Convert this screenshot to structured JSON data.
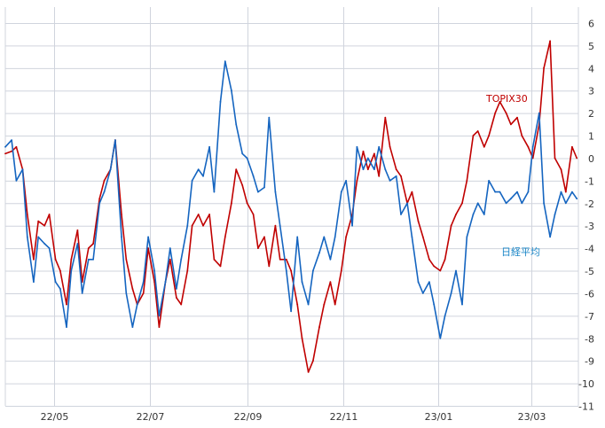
{
  "chart_data": {
    "type": "line",
    "title": "",
    "xlabel": "",
    "ylabel": "",
    "ylim": [
      -11,
      6
    ],
    "y_ticks": [
      "6",
      "5",
      "4",
      "3",
      "2",
      "1",
      "0",
      "-1",
      "-2",
      "-3",
      "-4",
      "-5",
      "-6",
      "-7",
      "-8",
      "-9",
      "-10",
      "-11"
    ],
    "x_ticks": [
      "22/05",
      "22/07",
      "22/09",
      "22/11",
      "23/01",
      "23/03"
    ],
    "x_tick_dates": [
      "2022-05-01",
      "2022-07-01",
      "2022-09-01",
      "2022-11-01",
      "2023-01-01",
      "2023-03-01"
    ],
    "x_range": [
      "2022-03-31",
      "2023-03-31"
    ],
    "grid": true,
    "colors": {
      "grid": "#d0d4dd",
      "axis_text": "#333333"
    },
    "series": [
      {
        "name": "TOPIX30",
        "color": "#c00000",
        "label_color": "#c00000",
        "x": [
          "2022-03-31",
          "2022-04-04",
          "2022-04-07",
          "2022-04-11",
          "2022-04-14",
          "2022-04-18",
          "2022-04-21",
          "2022-04-25",
          "2022-04-28",
          "2022-05-02",
          "2022-05-05",
          "2022-05-09",
          "2022-05-12",
          "2022-05-16",
          "2022-05-19",
          "2022-05-23",
          "2022-05-26",
          "2022-05-30",
          "2022-06-02",
          "2022-06-06",
          "2022-06-09",
          "2022-06-13",
          "2022-06-16",
          "2022-06-20",
          "2022-06-23",
          "2022-06-27",
          "2022-06-30",
          "2022-07-04",
          "2022-07-07",
          "2022-07-11",
          "2022-07-14",
          "2022-07-18",
          "2022-07-21",
          "2022-07-25",
          "2022-07-28",
          "2022-08-01",
          "2022-08-04",
          "2022-08-08",
          "2022-08-11",
          "2022-08-15",
          "2022-08-18",
          "2022-08-22",
          "2022-08-25",
          "2022-08-29",
          "2022-09-01",
          "2022-09-05",
          "2022-09-08",
          "2022-09-12",
          "2022-09-15",
          "2022-09-19",
          "2022-09-22",
          "2022-09-26",
          "2022-09-29",
          "2022-10-03",
          "2022-10-06",
          "2022-10-10",
          "2022-10-13",
          "2022-10-17",
          "2022-10-20",
          "2022-10-24",
          "2022-10-27",
          "2022-10-31",
          "2022-11-03",
          "2022-11-07",
          "2022-11-10",
          "2022-11-14",
          "2022-11-17",
          "2022-11-21",
          "2022-11-24",
          "2022-11-28",
          "2022-12-01",
          "2022-12-05",
          "2022-12-08",
          "2022-12-12",
          "2022-12-15",
          "2022-12-19",
          "2022-12-22",
          "2022-12-26",
          "2022-12-29",
          "2023-01-02",
          "2023-01-05",
          "2023-01-09",
          "2023-01-12",
          "2023-01-16",
          "2023-01-19",
          "2023-01-23",
          "2023-01-26",
          "2023-01-30",
          "2023-02-02",
          "2023-02-06",
          "2023-02-09",
          "2023-02-13",
          "2023-02-16",
          "2023-02-20",
          "2023-02-23",
          "2023-02-27",
          "2023-03-02",
          "2023-03-06",
          "2023-03-09",
          "2023-03-13",
          "2023-03-16",
          "2023-03-20",
          "2023-03-23",
          "2023-03-27",
          "2023-03-30"
        ],
        "values": [
          0.2,
          0.3,
          0.5,
          -0.5,
          -2.5,
          -4.5,
          -2.8,
          -3.0,
          -2.5,
          -4.5,
          -5.0,
          -6.5,
          -4.5,
          -3.2,
          -5.5,
          -4.0,
          -3.8,
          -1.8,
          -1.0,
          -0.5,
          0.8,
          -2.5,
          -4.5,
          -5.8,
          -6.5,
          -6.0,
          -4.0,
          -5.5,
          -7.5,
          -5.5,
          -4.5,
          -6.2,
          -6.5,
          -5.0,
          -3.0,
          -2.5,
          -3.0,
          -2.5,
          -4.5,
          -4.8,
          -3.5,
          -2.0,
          -0.5,
          -1.2,
          -2.0,
          -2.5,
          -4.0,
          -3.5,
          -4.8,
          -3.0,
          -4.5,
          -4.5,
          -5.0,
          -6.5,
          -8.0,
          -9.5,
          -9.0,
          -7.5,
          -6.5,
          -5.5,
          -6.5,
          -5.0,
          -3.5,
          -2.5,
          -1.0,
          0.3,
          -0.5,
          0.2,
          -0.8,
          1.8,
          0.5,
          -0.5,
          -0.8,
          -2.0,
          -1.5,
          -2.8,
          -3.5,
          -4.5,
          -4.8,
          -5.0,
          -4.5,
          -3.0,
          -2.5,
          -2.0,
          -1.0,
          1.0,
          1.2,
          0.5,
          1.0,
          2.0,
          2.5,
          2.0,
          1.5,
          1.8,
          1.0,
          0.5,
          0.0,
          1.5,
          4.0,
          5.2,
          0.0,
          -0.5,
          -1.5,
          0.5,
          0.0
        ]
      },
      {
        "name": "日経平均",
        "color": "#1565c0",
        "label_color": "#1e88c8",
        "x": [
          "2022-03-31",
          "2022-04-04",
          "2022-04-07",
          "2022-04-11",
          "2022-04-14",
          "2022-04-18",
          "2022-04-21",
          "2022-04-25",
          "2022-04-28",
          "2022-05-02",
          "2022-05-05",
          "2022-05-09",
          "2022-05-12",
          "2022-05-16",
          "2022-05-19",
          "2022-05-23",
          "2022-05-26",
          "2022-05-30",
          "2022-06-02",
          "2022-06-06",
          "2022-06-09",
          "2022-06-13",
          "2022-06-16",
          "2022-06-20",
          "2022-06-23",
          "2022-06-27",
          "2022-06-30",
          "2022-07-04",
          "2022-07-07",
          "2022-07-11",
          "2022-07-14",
          "2022-07-18",
          "2022-07-21",
          "2022-07-25",
          "2022-07-28",
          "2022-08-01",
          "2022-08-04",
          "2022-08-08",
          "2022-08-11",
          "2022-08-15",
          "2022-08-18",
          "2022-08-22",
          "2022-08-25",
          "2022-08-29",
          "2022-09-01",
          "2022-09-05",
          "2022-09-08",
          "2022-09-12",
          "2022-09-15",
          "2022-09-19",
          "2022-09-22",
          "2022-09-26",
          "2022-09-29",
          "2022-10-03",
          "2022-10-06",
          "2022-10-10",
          "2022-10-13",
          "2022-10-17",
          "2022-10-20",
          "2022-10-24",
          "2022-10-27",
          "2022-10-31",
          "2022-11-03",
          "2022-11-07",
          "2022-11-10",
          "2022-11-14",
          "2022-11-17",
          "2022-11-21",
          "2022-11-24",
          "2022-11-28",
          "2022-12-01",
          "2022-12-05",
          "2022-12-08",
          "2022-12-12",
          "2022-12-15",
          "2022-12-19",
          "2022-12-22",
          "2022-12-26",
          "2022-12-29",
          "2023-01-02",
          "2023-01-05",
          "2023-01-09",
          "2023-01-12",
          "2023-01-16",
          "2023-01-19",
          "2023-01-23",
          "2023-01-26",
          "2023-01-30",
          "2023-02-02",
          "2023-02-06",
          "2023-02-09",
          "2023-02-13",
          "2023-02-16",
          "2023-02-20",
          "2023-02-23",
          "2023-02-27",
          "2023-03-02",
          "2023-03-06",
          "2023-03-09",
          "2023-03-13",
          "2023-03-16",
          "2023-03-20",
          "2023-03-23",
          "2023-03-27",
          "2023-03-30"
        ],
        "values": [
          0.5,
          0.8,
          -1.0,
          -0.5,
          -3.5,
          -5.5,
          -3.5,
          -3.8,
          -4.0,
          -5.5,
          -5.8,
          -7.5,
          -5.0,
          -3.8,
          -6.0,
          -4.5,
          -4.5,
          -2.0,
          -1.5,
          -0.5,
          0.8,
          -3.5,
          -6.0,
          -7.5,
          -6.5,
          -5.5,
          -3.5,
          -5.0,
          -7.0,
          -5.5,
          -4.0,
          -5.8,
          -4.5,
          -3.0,
          -1.0,
          -0.5,
          -0.8,
          0.5,
          -1.5,
          2.5,
          4.3,
          3.0,
          1.5,
          0.2,
          0.0,
          -0.8,
          -1.5,
          -1.3,
          1.8,
          -1.5,
          -3.0,
          -5.0,
          -6.8,
          -3.5,
          -5.5,
          -6.5,
          -5.0,
          -4.2,
          -3.5,
          -4.5,
          -3.5,
          -1.5,
          -1.0,
          -3.0,
          0.5,
          -0.5,
          0.0,
          -0.5,
          0.5,
          -0.5,
          -1.0,
          -0.8,
          -2.5,
          -2.0,
          -3.5,
          -5.5,
          -6.0,
          -5.5,
          -6.5,
          -8.0,
          -7.0,
          -6.0,
          -5.0,
          -6.5,
          -3.5,
          -2.5,
          -2.0,
          -2.5,
          -1.0,
          -1.5,
          -1.5,
          -2.0,
          -1.8,
          -1.5,
          -2.0,
          -1.5,
          0.5,
          2.0,
          -2.0,
          -3.5,
          -2.5,
          -1.5,
          -2.0,
          -1.5,
          -1.8
        ]
      }
    ]
  }
}
